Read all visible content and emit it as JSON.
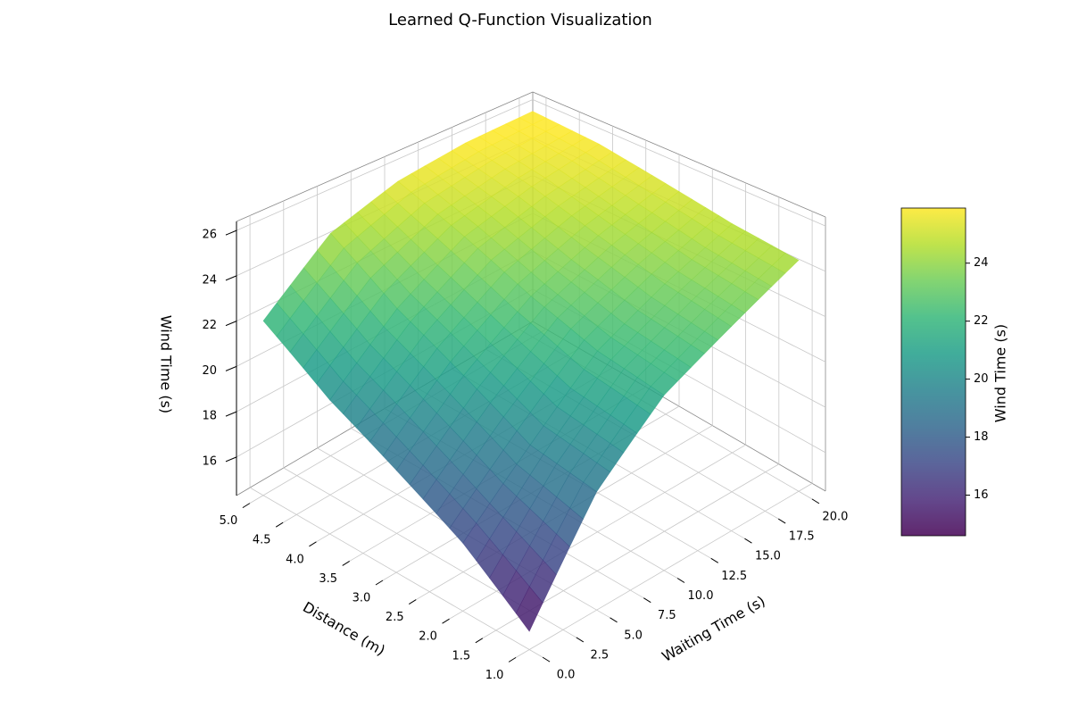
{
  "chart_data": {
    "type": "surface",
    "title": "Learned Q-Function Visualization",
    "xlabel": "Waiting Time (s)",
    "ylabel": "Distance (m)",
    "zlabel": "Wind Time (s)",
    "x": [
      0,
      5,
      10,
      15,
      20
    ],
    "y": [
      1,
      2,
      3,
      4,
      5
    ],
    "z": [
      [
        15.0,
        19.0,
        21.5,
        23.0,
        24.5
      ],
      [
        17.0,
        19.5,
        22.0,
        23.5,
        24.8
      ],
      [
        18.5,
        21.0,
        23.0,
        24.3,
        25.3
      ],
      [
        20.0,
        22.5,
        24.3,
        25.2,
        25.8
      ],
      [
        22.0,
        24.5,
        25.5,
        25.9,
        26.0
      ]
    ],
    "xlim": [
      -1,
      21
    ],
    "ylim": [
      0.8,
      5.2
    ],
    "zlim": [
      14.3,
      26.4
    ],
    "xticks": [
      {
        "value": 0,
        "label": "0.0"
      },
      2.5,
      {
        "value": 5,
        "label": "5.0"
      },
      7.5,
      {
        "value": 10,
        "label": "10.0"
      },
      12.5,
      {
        "value": 15,
        "label": "15.0"
      },
      17.5,
      {
        "value": 20,
        "label": "20.0"
      }
    ],
    "yticks": [
      {
        "value": 1,
        "label": "1.0"
      },
      1.5,
      {
        "value": 2,
        "label": "2.0"
      },
      2.5,
      {
        "value": 3,
        "label": "3.0"
      },
      3.5,
      {
        "value": 4,
        "label": "4.0"
      },
      4.5,
      {
        "value": 5,
        "label": "5.0"
      }
    ],
    "zticks": [
      16,
      18,
      20,
      22,
      24,
      26
    ],
    "colormap": "viridis",
    "grid": true,
    "colorbar": {
      "label": "Wind Time (s)",
      "lim": [
        14.6,
        25.9
      ],
      "ticks": [
        16,
        18,
        20,
        22,
        24
      ]
    }
  }
}
